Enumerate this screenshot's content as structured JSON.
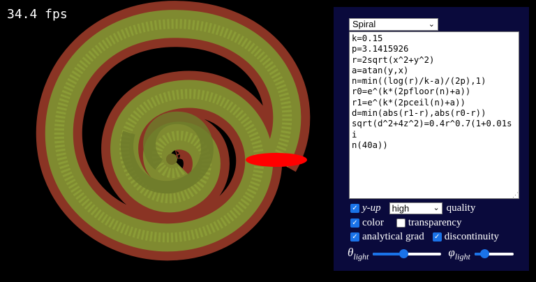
{
  "fps_label": "34.4 fps",
  "preset": {
    "selected": "Spiral"
  },
  "code_lines": [
    "k=0.15",
    "p=3.1415926",
    "r=2sqrt(x^2+y^2)",
    "a=atan(y,x)",
    "n=min((log(r)/k-a)/(2p),1)",
    "r0=e^(k*(2pfloor(n)+a))",
    "r1=e^(k*(2pceil(n)+a))",
    "d=min(abs(r1-r),abs(r0-r))",
    "sqrt(d^2+4z^2)=0.4r^0.7(1+0.01si",
    "n(40a))"
  ],
  "options": {
    "yup_label": "y-up",
    "quality_value": "high",
    "quality_label": "quality",
    "color_label": "color",
    "transparency_label": "transparency",
    "analytical_grad_label": "analytical grad",
    "discontinuity_label": "discontinuity",
    "theta_symbol": "θ",
    "phi_symbol": "φ",
    "light_subscript": "light",
    "yup_checked": true,
    "color_checked": true,
    "transparency_checked": false,
    "analytical_grad_checked": true,
    "discontinuity_checked": true,
    "theta_level": 0.45,
    "phi_level": 0.18
  },
  "colors": {
    "panel": "#0a0a3c",
    "accent": "#1a73e8",
    "shell_outer": "#a03a28",
    "shell_mid": "#7a8a30",
    "cut": "#ff0000"
  }
}
